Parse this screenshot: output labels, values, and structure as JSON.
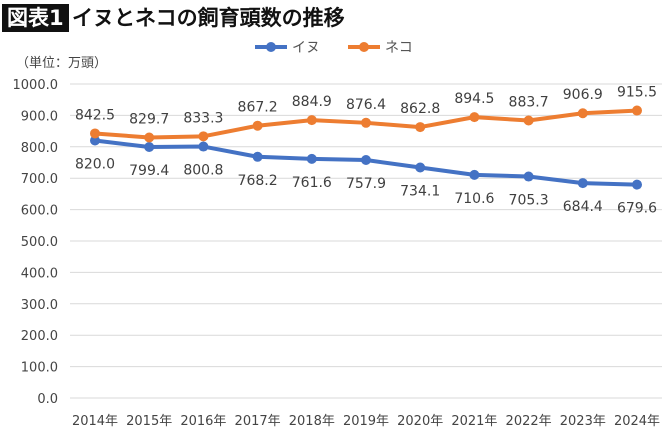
{
  "title_badge": "図表1",
  "title": "イヌとネコの飼育頭数の推移",
  "chart_data": {
    "type": "line",
    "title": "イヌとネコの飼育頭数の推移",
    "unit_label": "（単位：万頭）",
    "categories": [
      "2014年",
      "2015年",
      "2016年",
      "2017年",
      "2018年",
      "2019年",
      "2020年",
      "2021年",
      "2022年",
      "2023年",
      "2024年"
    ],
    "series": [
      {
        "name": "イヌ",
        "color": "#4472C4",
        "values": [
          820.0,
          799.4,
          800.8,
          768.2,
          761.6,
          757.9,
          734.1,
          710.6,
          705.3,
          684.4,
          679.6
        ],
        "label_position": "below"
      },
      {
        "name": "ネコ",
        "color": "#ED7D31",
        "values": [
          842.5,
          829.7,
          833.3,
          867.2,
          884.9,
          876.4,
          862.8,
          894.5,
          883.7,
          906.9,
          915.5
        ],
        "label_position": "above"
      }
    ],
    "ylim": [
      0,
      1000
    ],
    "yticks": [
      0,
      100,
      200,
      300,
      400,
      500,
      600,
      700,
      800,
      900,
      1000
    ],
    "grid": true,
    "legend_position": "top"
  }
}
